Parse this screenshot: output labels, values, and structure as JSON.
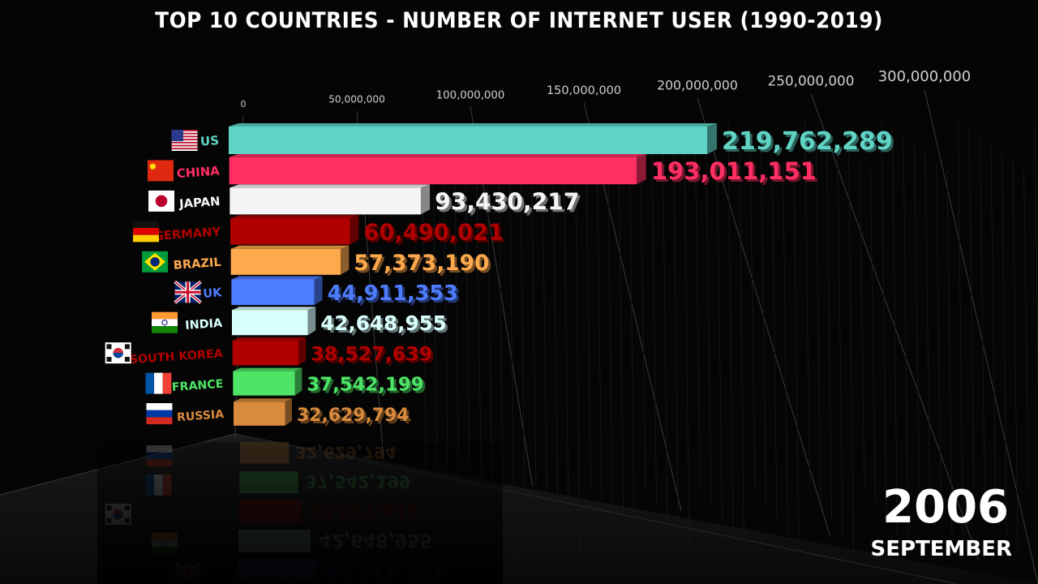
{
  "chart_data": {
    "type": "bar",
    "title": "TOP 10 COUNTRIES - NUMBER OF INTERNET USER (1990-2019)",
    "x_ticks": [
      "0",
      "50,000,000",
      "100,000,000",
      "150,000,000",
      "200,000,000",
      "250,000,000",
      "300,000,000"
    ],
    "tick_values": [
      0,
      50000000,
      100000000,
      150000000,
      200000000,
      250000000,
      300000000
    ],
    "xlim": [
      0,
      300000000
    ],
    "categories": [
      "US",
      "CHINA",
      "JAPAN",
      "GERMANY",
      "BRAZIL",
      "UK",
      "INDIA",
      "SOUTH KOREA",
      "FRANCE",
      "RUSSIA"
    ],
    "values": [
      219762289,
      193011151,
      93430217,
      60490021,
      57373190,
      44911353,
      42648955,
      38527639,
      37542199,
      32629794
    ],
    "value_labels": [
      "219,762,289",
      "193,011,151",
      "93,430,217",
      "60,490,021",
      "57,373,190",
      "44,911,353",
      "42,648,955",
      "38,527,639",
      "37,542,199",
      "32,629,794"
    ],
    "colors": [
      "#5fd3c4",
      "#ff2e63",
      "#f5f5f5",
      "#b00000",
      "#ffa94d",
      "#4d7cff",
      "#d9fffc",
      "#b00000",
      "#4ee566",
      "#d98a3d"
    ],
    "flags": [
      "flag-us-icon",
      "flag-china-icon",
      "flag-japan-icon",
      "flag-germany-icon",
      "flag-brazil-icon",
      "flag-uk-icon",
      "flag-india-icon",
      "flag-south-korea-icon",
      "flag-france-icon",
      "flag-russia-icon"
    ],
    "grid": true
  },
  "period": {
    "year": "2006",
    "month": "SEPTEMBER"
  }
}
